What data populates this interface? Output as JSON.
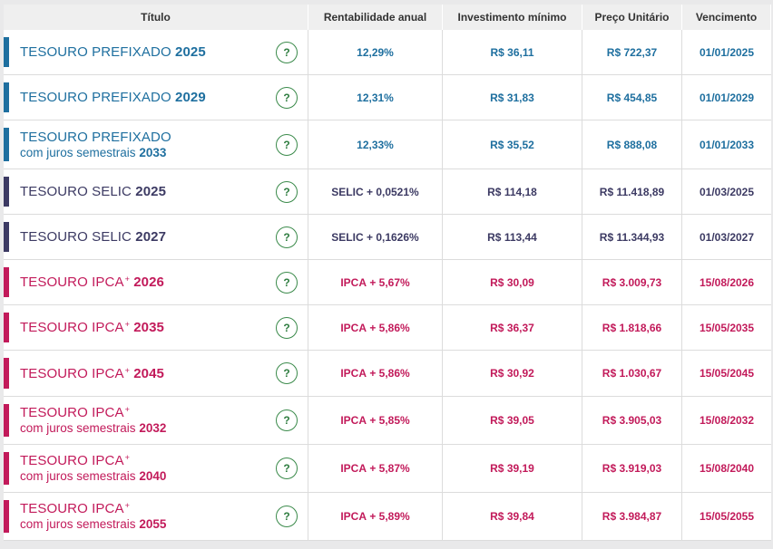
{
  "headers": {
    "titulo": "Título",
    "rentabilidade": "Rentabilidade anual",
    "investimento": "Investimento mínimo",
    "preco": "Preço Unitário",
    "vencimento": "Vencimento"
  },
  "colors": {
    "prefixado": "#1e6f9f",
    "selic": "#3c3a63",
    "ipca": "#c21a5a",
    "help_icon": "#2f7d40"
  },
  "help_icon_symbol": "?",
  "rows": [
    {
      "family": "prefixado",
      "line1": "TESOURO PREFIXADO",
      "year": "2025",
      "line2": "",
      "rate_prefix": "",
      "rate": "12,29%",
      "min": "R$ 36,11",
      "price": "R$ 722,37",
      "maturity": "01/01/2025"
    },
    {
      "family": "prefixado",
      "line1": "TESOURO PREFIXADO",
      "year": "2029",
      "line2": "",
      "rate_prefix": "",
      "rate": "12,31%",
      "min": "R$ 31,83",
      "price": "R$ 454,85",
      "maturity": "01/01/2029"
    },
    {
      "family": "prefixado",
      "line1": "TESOURO PREFIXADO",
      "year": "2033",
      "line2": "com juros semestrais",
      "rate_prefix": "",
      "rate": "12,33%",
      "min": "R$ 35,52",
      "price": "R$ 888,08",
      "maturity": "01/01/2033"
    },
    {
      "family": "selic",
      "line1": "TESOURO SELIC",
      "year": "2025",
      "line2": "",
      "rate_prefix": "SELIC",
      "rate": " + 0,0521%",
      "min": "R$ 114,18",
      "price": "R$ 11.418,89",
      "maturity": "01/03/2025"
    },
    {
      "family": "selic",
      "line1": "TESOURO SELIC",
      "year": "2027",
      "line2": "",
      "rate_prefix": "SELIC",
      "rate": " + 0,1626%",
      "min": "R$ 113,44",
      "price": "R$ 11.344,93",
      "maturity": "01/03/2027"
    },
    {
      "family": "ipca",
      "line1": "TESOURO IPCA",
      "sup": "+",
      "year": "2026",
      "line2": "",
      "rate_prefix": "IPCA",
      "rate": " + 5,67%",
      "min": "R$ 30,09",
      "price": "R$ 3.009,73",
      "maturity": "15/08/2026"
    },
    {
      "family": "ipca",
      "line1": "TESOURO IPCA",
      "sup": "+",
      "year": "2035",
      "line2": "",
      "rate_prefix": "IPCA",
      "rate": " + 5,86%",
      "min": "R$ 36,37",
      "price": "R$ 1.818,66",
      "maturity": "15/05/2035"
    },
    {
      "family": "ipca",
      "line1": "TESOURO IPCA",
      "sup": "+",
      "year": "2045",
      "line2": "",
      "rate_prefix": "IPCA",
      "rate": " + 5,86%",
      "min": "R$ 30,92",
      "price": "R$ 1.030,67",
      "maturity": "15/05/2045"
    },
    {
      "family": "ipca",
      "line1": "TESOURO IPCA",
      "sup": "+",
      "year": "2032",
      "line2": "com juros semestrais",
      "rate_prefix": "IPCA",
      "rate": " + 5,85%",
      "min": "R$ 39,05",
      "price": "R$ 3.905,03",
      "maturity": "15/08/2032"
    },
    {
      "family": "ipca",
      "line1": "TESOURO IPCA",
      "sup": "+",
      "year": "2040",
      "line2": "com juros semestrais",
      "rate_prefix": "IPCA",
      "rate": " + 5,87%",
      "min": "R$ 39,19",
      "price": "R$ 3.919,03",
      "maturity": "15/08/2040"
    },
    {
      "family": "ipca",
      "line1": "TESOURO IPCA",
      "sup": "+",
      "year": "2055",
      "line2": "com juros semestrais",
      "rate_prefix": "IPCA",
      "rate": " + 5,89%",
      "min": "R$ 39,84",
      "price": "R$ 3.984,87",
      "maturity": "15/05/2055"
    }
  ]
}
